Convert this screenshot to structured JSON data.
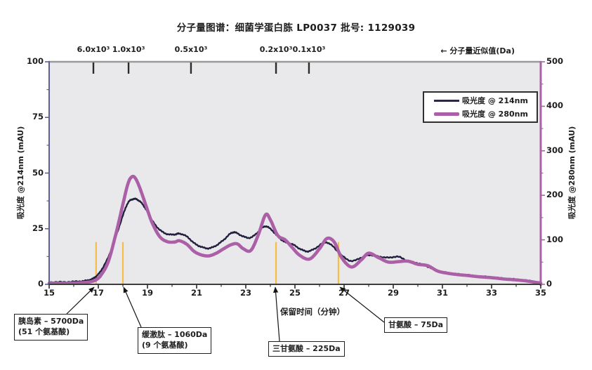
{
  "title": "分子量图谱：细菌学蛋白胨 LP0037  批号: 1129039",
  "chart_data": {
    "type": "line",
    "title": "分子量图谱：细菌学蛋白胨 LP0037 批号: 1129039",
    "plot_bg": "#e9e8eb",
    "x_axis": {
      "label": "保留时间（分钟）",
      "range": [
        15,
        35
      ],
      "ticks": [
        15,
        17,
        19,
        21,
        23,
        25,
        27,
        29,
        31,
        33,
        35
      ],
      "color": "#3c3c3c"
    },
    "y_left": {
      "label": "吸光度 @214nm (mAU)",
      "range": [
        0,
        100
      ],
      "ticks": [
        0,
        25,
        50,
        75,
        100
      ],
      "color": "#5c6191"
    },
    "y_right": {
      "label": "吸光度 @280nm (mAU)",
      "range": [
        0,
        500
      ],
      "ticks": [
        0,
        100,
        200,
        300,
        400,
        500
      ],
      "color": "#a962a5"
    },
    "top_axis": {
      "label": "← 分子量近似值(Da)",
      "color": "#9a9a9a",
      "ticks": [
        {
          "label": "6.0x10³",
          "t": 16.8
        },
        {
          "label": "1.0x10³",
          "t": 18.23
        },
        {
          "label": "0.5x10³",
          "t": 20.77
        },
        {
          "label": "0.2x10³",
          "t": 24.23
        },
        {
          "label": "0.1x10³",
          "t": 25.57
        }
      ]
    },
    "legend": [
      {
        "label": "吸光度 @ 214nm",
        "color": "#2a2747"
      },
      {
        "label": "吸光度 @ 280nm",
        "color": "#ab5fa6"
      }
    ],
    "markers": {
      "color": "#f5bd42",
      "top_value_left_axis": 19,
      "t_positions": [
        16.91,
        18.0,
        24.23,
        26.77
      ]
    },
    "series": [
      {
        "name": "吸光度 @ 214nm",
        "axis": "left",
        "color": "#221f3e",
        "width": 2.4,
        "points": [
          [
            15,
            1.0
          ],
          [
            15.5,
            1.0
          ],
          [
            16,
            1.2
          ],
          [
            16.4,
            1.5
          ],
          [
            16.7,
            2.2
          ],
          [
            16.9,
            3.5
          ],
          [
            17.1,
            6
          ],
          [
            17.4,
            12
          ],
          [
            17.7,
            21
          ],
          [
            18.0,
            31
          ],
          [
            18.2,
            36.5
          ],
          [
            18.4,
            38.3
          ],
          [
            18.6,
            38.0
          ],
          [
            18.8,
            36
          ],
          [
            19.0,
            32.5
          ],
          [
            19.2,
            28.5
          ],
          [
            19.5,
            24.5
          ],
          [
            19.8,
            22.6
          ],
          [
            20.1,
            22.4
          ],
          [
            20.3,
            22.8
          ],
          [
            20.6,
            21.5
          ],
          [
            20.9,
            18.5
          ],
          [
            21.2,
            16.8
          ],
          [
            21.5,
            16.2
          ],
          [
            21.8,
            17.5
          ],
          [
            22.1,
            20
          ],
          [
            22.4,
            23
          ],
          [
            22.6,
            23.2
          ],
          [
            22.9,
            21.5
          ],
          [
            23.2,
            21
          ],
          [
            23.5,
            23.5
          ],
          [
            23.75,
            26
          ],
          [
            24.0,
            25
          ],
          [
            24.3,
            21.5
          ],
          [
            24.6,
            19
          ],
          [
            24.9,
            18
          ],
          [
            25.2,
            16
          ],
          [
            25.5,
            14.8
          ],
          [
            25.8,
            16
          ],
          [
            26.2,
            18.8
          ],
          [
            26.5,
            17.5
          ],
          [
            26.9,
            13
          ],
          [
            27.3,
            10.5
          ],
          [
            27.7,
            12
          ],
          [
            28.0,
            13.2
          ],
          [
            28.4,
            12.5
          ],
          [
            28.8,
            12
          ],
          [
            29.2,
            12.4
          ],
          [
            29.6,
            10.5
          ],
          [
            30.0,
            9.5
          ],
          [
            30.4,
            8.0
          ],
          [
            30.8,
            6.0
          ],
          [
            31.2,
            5.2
          ],
          [
            31.6,
            4.6
          ],
          [
            32.0,
            4.2
          ],
          [
            32.5,
            3.6
          ],
          [
            33.0,
            3.2
          ],
          [
            33.5,
            2.6
          ],
          [
            34.0,
            2.2
          ],
          [
            34.5,
            1.6
          ],
          [
            35.0,
            0.8
          ]
        ]
      },
      {
        "name": "吸光度 @ 280nm",
        "axis": "right",
        "color": "#ab5fa6",
        "width": 4.6,
        "points": [
          [
            15,
            2.5
          ],
          [
            15.5,
            2.5
          ],
          [
            16,
            3
          ],
          [
            16.4,
            4
          ],
          [
            16.7,
            6
          ],
          [
            16.9,
            10
          ],
          [
            17.1,
            20
          ],
          [
            17.4,
            50
          ],
          [
            17.7,
            110
          ],
          [
            18.0,
            180
          ],
          [
            18.2,
            225
          ],
          [
            18.35,
            241
          ],
          [
            18.5,
            239
          ],
          [
            18.7,
            215
          ],
          [
            19.0,
            167
          ],
          [
            19.2,
            137
          ],
          [
            19.5,
            107
          ],
          [
            19.8,
            96
          ],
          [
            20.1,
            95
          ],
          [
            20.3,
            98
          ],
          [
            20.6,
            90
          ],
          [
            20.9,
            74
          ],
          [
            21.2,
            66
          ],
          [
            21.5,
            64
          ],
          [
            21.8,
            70
          ],
          [
            22.1,
            80
          ],
          [
            22.4,
            89
          ],
          [
            22.65,
            91
          ],
          [
            22.9,
            80
          ],
          [
            23.2,
            76
          ],
          [
            23.5,
            110
          ],
          [
            23.8,
            156
          ],
          [
            24.0,
            145
          ],
          [
            24.3,
            110
          ],
          [
            24.6,
            100
          ],
          [
            24.9,
            82
          ],
          [
            25.2,
            65
          ],
          [
            25.6,
            57
          ],
          [
            26.0,
            80
          ],
          [
            26.3,
            103
          ],
          [
            26.6,
            95
          ],
          [
            26.9,
            60
          ],
          [
            27.3,
            39
          ],
          [
            27.7,
            55
          ],
          [
            28.0,
            70
          ],
          [
            28.4,
            60
          ],
          [
            28.8,
            50
          ],
          [
            29.2,
            51
          ],
          [
            29.6,
            52
          ],
          [
            30.0,
            45
          ],
          [
            30.4,
            42
          ],
          [
            30.8,
            30
          ],
          [
            31.2,
            25
          ],
          [
            31.6,
            22
          ],
          [
            32.0,
            20
          ],
          [
            32.5,
            17
          ],
          [
            33.0,
            15
          ],
          [
            33.5,
            12
          ],
          [
            34.0,
            10
          ],
          [
            34.5,
            7
          ],
          [
            35.0,
            2.5
          ]
        ]
      }
    ],
    "annotations": [
      {
        "line1": "胰岛素 – 5700Da",
        "line2": "(51 个氨基酸)",
        "arrow_t": 16.83
      },
      {
        "line1": "缓激肽 – 1060Da",
        "line2": "(9 个氨基酸)",
        "arrow_t": 18.03
      },
      {
        "line1": "三甘氨酸 – 225Da",
        "line2": "",
        "arrow_t": 24.2
      },
      {
        "line1": "甘氨酸  – 75Da",
        "line2": "",
        "arrow_t": 26.83
      }
    ]
  }
}
